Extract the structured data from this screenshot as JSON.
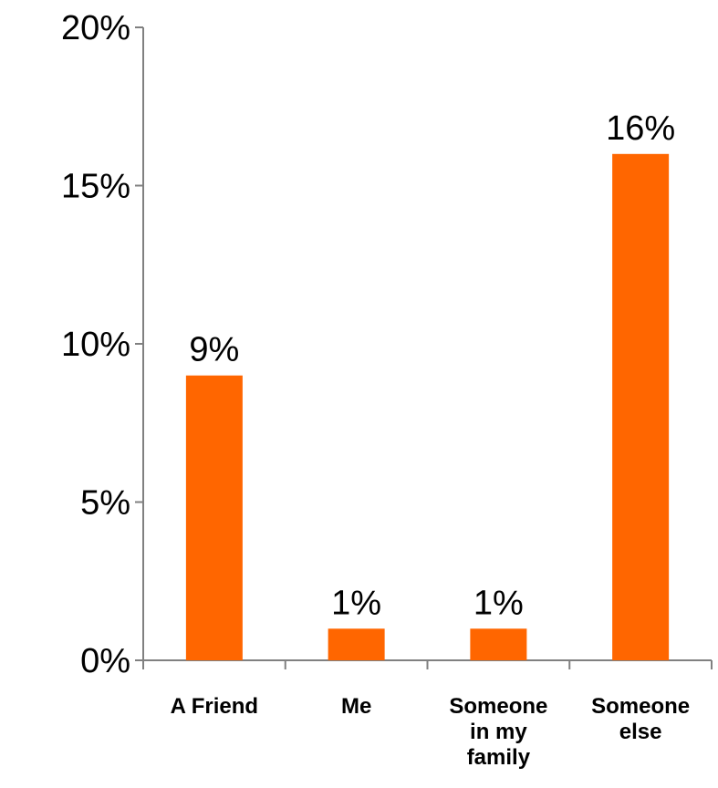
{
  "chart_data": {
    "type": "bar",
    "categories": [
      [
        "A Friend"
      ],
      [
        "Me"
      ],
      [
        "Someone",
        "in my",
        "family"
      ],
      [
        "Someone",
        "else"
      ]
    ],
    "values": [
      9,
      1,
      1,
      16
    ],
    "data_labels": [
      "9%",
      "1%",
      "1%",
      "16%"
    ],
    "ylim": [
      0,
      20
    ],
    "yticks": [
      0,
      5,
      10,
      15,
      20
    ],
    "ytick_labels": [
      "0%",
      "5%",
      "10%",
      "15%",
      "20%"
    ],
    "bar_color": "#ff6600",
    "axis_color": "#808080",
    "title": "",
    "xlabel": "",
    "ylabel": "",
    "grid": false,
    "legend": false
  }
}
